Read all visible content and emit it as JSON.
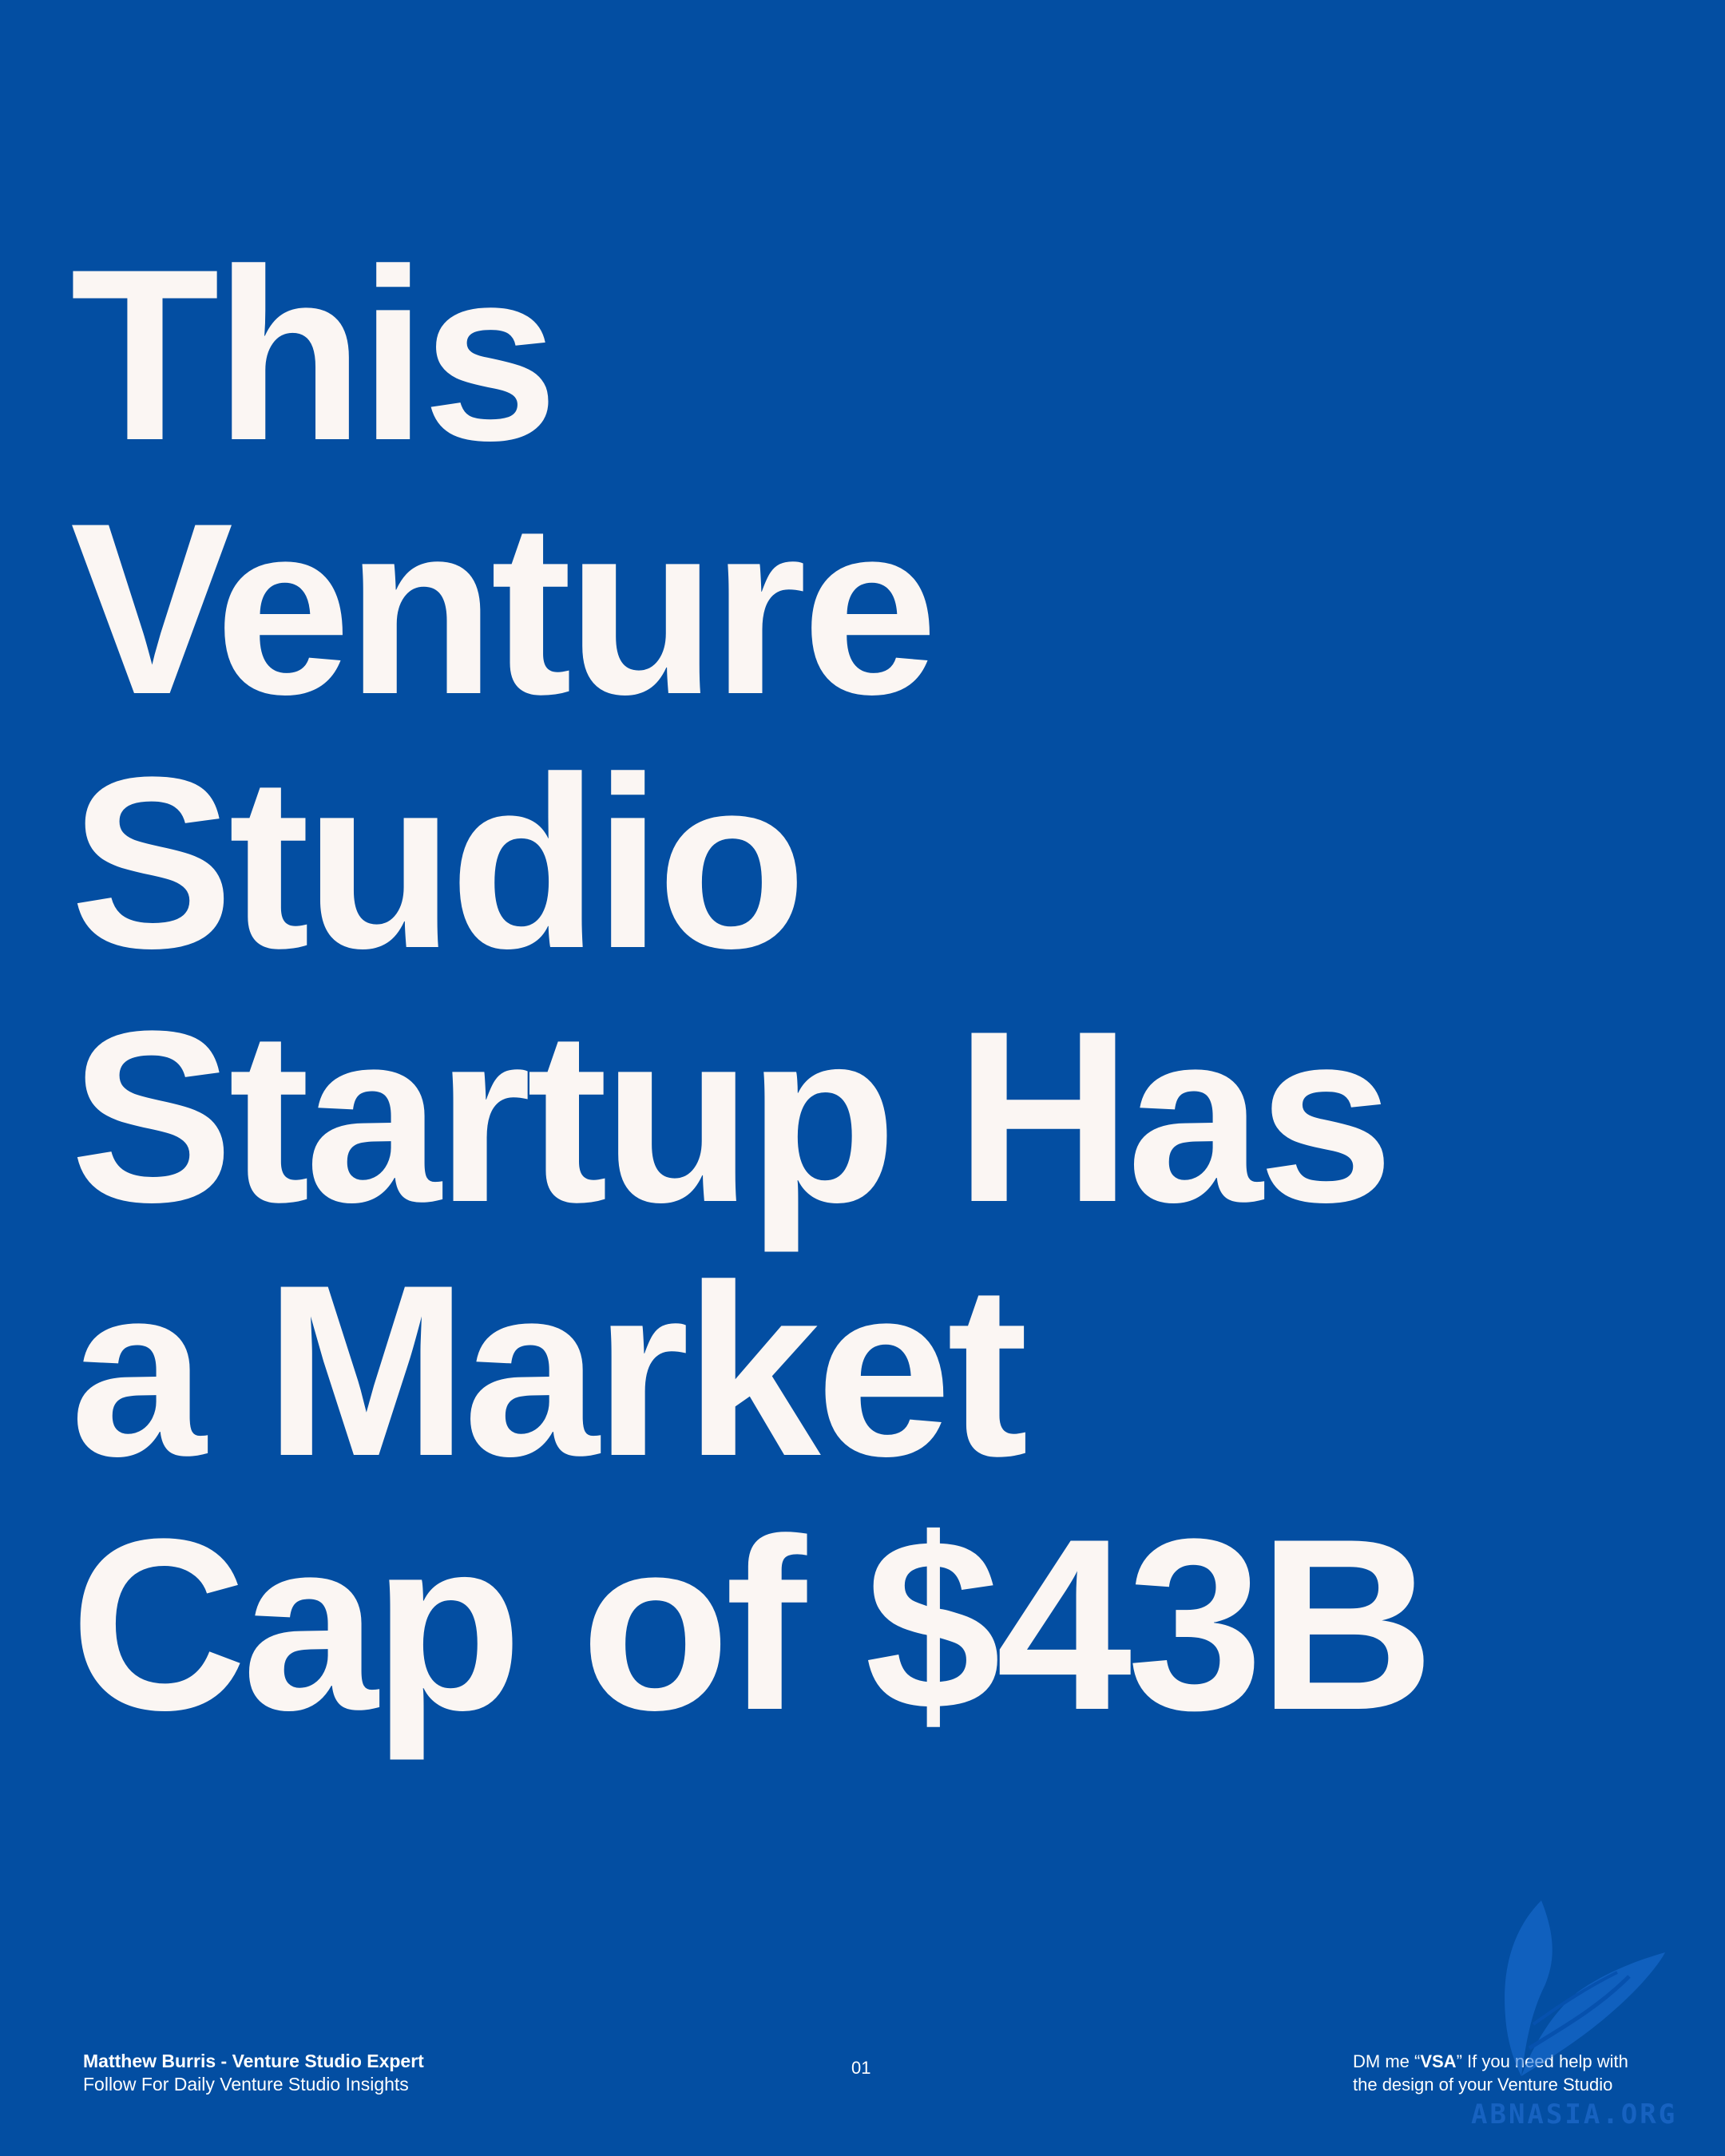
{
  "headline": {
    "lines": [
      "This",
      "Venture",
      "Studio",
      "Startup Has",
      "a Market",
      "Cap of $43B"
    ]
  },
  "footer": {
    "author": "Matthew Burris - Venture Studio Expert",
    "tagline": "Follow For Daily Venture Studio Insights",
    "page_number": "01",
    "cta_prefix": "DM me “",
    "cta_keyword": "VSA",
    "cta_suffix": "” If you need help with",
    "cta_line2": "the design of your Venture Studio"
  },
  "watermark": {
    "text": "ABNASIA.ORG",
    "icon": "feather-logo-icon"
  },
  "colors": {
    "background": "#034ea2",
    "headline": "#fbf6f3",
    "watermark": "#1c67c8"
  }
}
